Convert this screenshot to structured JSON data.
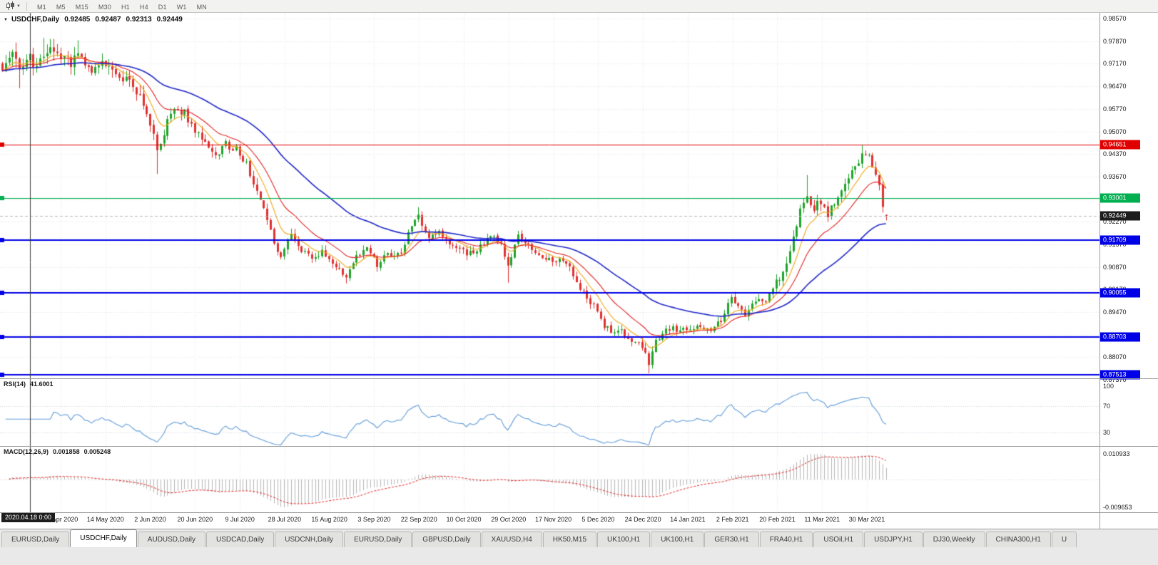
{
  "toolbar": {
    "timeframes": [
      "M1",
      "M5",
      "M15",
      "M30",
      "H1",
      "H4",
      "D1",
      "W1",
      "MN"
    ]
  },
  "chart": {
    "title": {
      "symbol": "USDCHF,Daily",
      "open": "0.92485",
      "high": "0.92487",
      "low": "0.92313",
      "close": "0.92449"
    },
    "crosshair": {
      "date_label": "2020.04.18 0:00"
    },
    "current_price": {
      "label": "0.92449",
      "value": 0.92449,
      "box_color": "#1d1d1d"
    },
    "price_axis": {
      "labels": [
        0.9857,
        0.9787,
        0.9717,
        0.9647,
        0.9577,
        0.9507,
        0.9437,
        0.9367,
        0.9297,
        0.9227,
        0.9157,
        0.9087,
        0.9017,
        0.8947,
        0.8877,
        0.8807,
        0.8737
      ]
    },
    "levels": [
      {
        "value": 0.94651,
        "label": "0.94651",
        "color": "#e00000",
        "width": 1
      },
      {
        "value": 0.93001,
        "label": "0.93001",
        "color": "#00B050",
        "width": 1
      },
      {
        "value": 0.91709,
        "label": "0.91709",
        "color": "#0000E6",
        "width": 2
      },
      {
        "value": 0.90055,
        "label": "0.90055",
        "color": "#0000E6",
        "width": 2
      },
      {
        "value": 0.88703,
        "label": "0.88703",
        "color": "#0000E6",
        "width": 2
      },
      {
        "value": 0.87513,
        "label": "0.87513",
        "color": "#0000E6",
        "width": 2
      }
    ],
    "time_axis": {
      "dates": [
        "24 Apr 2020",
        "14 May 2020",
        "2 Jun 2020",
        "20 Jun 2020",
        "9 Jul 2020",
        "28 Jul 2020",
        "15 Aug 2020",
        "3 Sep 2020",
        "22 Sep 2020",
        "10 Oct 2020",
        "29 Oct 2020",
        "17 Nov 2020",
        "5 Dec 2020",
        "24 Dec 2020",
        "14 Jan 2021",
        "2 Feb 2021",
        "20 Feb 2021",
        "11 Mar 2021",
        "30 Mar 2021"
      ]
    }
  },
  "indicators": {
    "rsi": {
      "label": "RSI(14)",
      "value": "41.6001",
      "color": "#5f9bd8",
      "scale": [
        "100",
        "70",
        "30"
      ],
      "guide_levels": [
        70,
        30
      ]
    },
    "macd": {
      "label": "MACD(12,26,9)",
      "value1": "0.001858",
      "value2": "0.005248",
      "scale_max": "0.010933",
      "scale_min": "-0.009653",
      "histogram_color": "#b6b6b6",
      "signal_color": "#e32424"
    }
  },
  "tabs": {
    "active_index": 1,
    "items": [
      {
        "label": "EURUSD,Daily"
      },
      {
        "label": "USDCHF,Daily"
      },
      {
        "label": "AUDUSD,Daily"
      },
      {
        "label": "USDCAD,Daily"
      },
      {
        "label": "USDCNH,Daily"
      },
      {
        "label": "EURUSD,Daily"
      },
      {
        "label": "GBPUSD,Daily"
      },
      {
        "label": "XAUUSD,H4"
      },
      {
        "label": "HK50,M15"
      },
      {
        "label": "UK100,H1"
      },
      {
        "label": "UK100,H1"
      },
      {
        "label": "GER30,H1"
      },
      {
        "label": "FRA40,H1"
      },
      {
        "label": "USOil,H1"
      },
      {
        "label": "USDJPY,H1"
      },
      {
        "label": "DJ30,Weekly"
      },
      {
        "label": "CHINA300,H1"
      },
      {
        "label": "U"
      }
    ]
  },
  "chart_data": {
    "type": "candlestick",
    "symbol": "USDCHF",
    "timeframe": "Daily",
    "last_candle": {
      "open": 0.92485,
      "high": 0.92487,
      "low": 0.92313,
      "close": 0.92449
    },
    "candle_count": 258,
    "y_axis_range": [
      0.8734,
      0.9875
    ],
    "horizontal_levels": [
      0.94651,
      0.93001,
      0.91709,
      0.90055,
      0.88703,
      0.87513
    ],
    "x_tick_labels": [
      "24 Apr 2020",
      "14 May 2020",
      "2 Jun 2020",
      "20 Jun 2020",
      "9 Jul 2020",
      "28 Jul 2020",
      "15 Aug 2020",
      "3 Sep 2020",
      "22 Sep 2020",
      "10 Oct 2020",
      "29 Oct 2020",
      "17 Nov 2020",
      "5 Dec 2020",
      "24 Dec 2020",
      "14 Jan 2021",
      "2 Feb 2021",
      "20 Feb 2021",
      "11 Mar 2021",
      "30 Mar 2021"
    ],
    "price_waypoints": [
      [
        0,
        0.97
      ],
      [
        3,
        0.9745
      ],
      [
        5,
        0.971
      ],
      [
        8,
        0.973
      ],
      [
        10,
        0.9705
      ],
      [
        12,
        0.974
      ],
      [
        15,
        0.976
      ],
      [
        18,
        0.9735
      ],
      [
        20,
        0.972
      ],
      [
        22,
        0.975
      ],
      [
        26,
        0.97
      ],
      [
        30,
        0.9715
      ],
      [
        34,
        0.967
      ],
      [
        37,
        0.9655
      ],
      [
        40,
        0.961
      ],
      [
        44,
        0.949
      ],
      [
        45,
        0.9455
      ],
      [
        47,
        0.95
      ],
      [
        49,
        0.957
      ],
      [
        53,
        0.9565
      ],
      [
        55,
        0.952
      ],
      [
        59,
        0.947
      ],
      [
        62,
        0.9435
      ],
      [
        65,
        0.9465
      ],
      [
        68,
        0.945
      ],
      [
        71,
        0.9405
      ],
      [
        74,
        0.932
      ],
      [
        77,
        0.9235
      ],
      [
        79,
        0.9155
      ],
      [
        81,
        0.9125
      ],
      [
        84,
        0.9185
      ],
      [
        87,
        0.9135
      ],
      [
        90,
        0.9115
      ],
      [
        93,
        0.9135
      ],
      [
        96,
        0.9095
      ],
      [
        100,
        0.906
      ],
      [
        103,
        0.912
      ],
      [
        106,
        0.9145
      ],
      [
        109,
        0.9095
      ],
      [
        112,
        0.9125
      ],
      [
        116,
        0.9135
      ],
      [
        119,
        0.922
      ],
      [
        121,
        0.9245
      ],
      [
        124,
        0.918
      ],
      [
        127,
        0.9195
      ],
      [
        129,
        0.9165
      ],
      [
        132,
        0.9155
      ],
      [
        135,
        0.9125
      ],
      [
        138,
        0.9135
      ],
      [
        142,
        0.9185
      ],
      [
        145,
        0.9155
      ],
      [
        147,
        0.9095
      ],
      [
        150,
        0.918
      ],
      [
        153,
        0.9155
      ],
      [
        156,
        0.9125
      ],
      [
        159,
        0.9115
      ],
      [
        162,
        0.9105
      ],
      [
        165,
        0.9085
      ],
      [
        168,
        0.902
      ],
      [
        172,
        0.8965
      ],
      [
        175,
        0.8905
      ],
      [
        177,
        0.8885
      ],
      [
        180,
        0.8895
      ],
      [
        183,
        0.8855
      ],
      [
        186,
        0.8845
      ],
      [
        188,
        0.8785
      ],
      [
        190,
        0.8855
      ],
      [
        193,
        0.889
      ],
      [
        196,
        0.8895
      ],
      [
        200,
        0.8885
      ],
      [
        203,
        0.8905
      ],
      [
        206,
        0.8895
      ],
      [
        209,
        0.8925
      ],
      [
        212,
        0.8995
      ],
      [
        214,
        0.8965
      ],
      [
        216,
        0.8925
      ],
      [
        218,
        0.8965
      ],
      [
        220,
        0.8995
      ],
      [
        222,
        0.8975
      ],
      [
        225,
        0.9035
      ],
      [
        228,
        0.9085
      ],
      [
        230,
        0.9185
      ],
      [
        232,
        0.926
      ],
      [
        234,
        0.9305
      ],
      [
        236,
        0.9265
      ],
      [
        238,
        0.9295
      ],
      [
        240,
        0.9255
      ],
      [
        242,
        0.9285
      ],
      [
        244,
        0.932
      ],
      [
        246,
        0.9365
      ],
      [
        248,
        0.9405
      ],
      [
        250,
        0.9435
      ],
      [
        252,
        0.9425
      ],
      [
        253,
        0.9398
      ],
      [
        255,
        0.9345
      ],
      [
        256,
        0.9285
      ],
      [
        257,
        0.9245
      ]
    ],
    "forced_extremes": [
      [
        5,
        "low",
        0.9641
      ],
      [
        12,
        "high",
        0.9797
      ],
      [
        22,
        "high",
        0.979
      ],
      [
        45,
        "low",
        0.9375
      ],
      [
        100,
        "low",
        0.9036
      ],
      [
        121,
        "high",
        0.9272
      ],
      [
        147,
        "low",
        0.9038
      ],
      [
        188,
        "low",
        0.8757
      ],
      [
        234,
        "high",
        0.9372
      ],
      [
        250,
        "high",
        0.94651
      ]
    ],
    "colors": {
      "up": "#1fa32a",
      "down": "#e03030"
    },
    "moving_averages": [
      {
        "period": 8,
        "color": "#f0a818"
      },
      {
        "period": 17,
        "color": "#e32424"
      },
      {
        "period": 48,
        "color": "#2028c8"
      }
    ],
    "rsi_period": 14,
    "rsi_current": 41.6001,
    "macd_params": [
      12,
      26,
      9
    ],
    "macd_current": [
      0.001858,
      0.005248
    ],
    "macd_scale": [
      0.010933,
      -0.009653
    ]
  }
}
